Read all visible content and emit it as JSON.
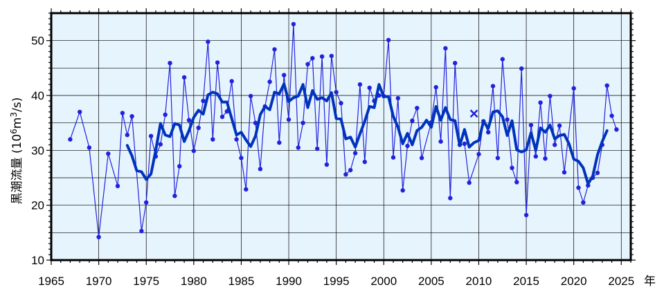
{
  "chart_data": {
    "type": "line",
    "title": "",
    "ylabel": "黒潮流量 (10⁶m³/s)",
    "ylabel_parts": {
      "main": "黒潮流量 (10",
      "exp1": "6",
      "mid": "m",
      "exp2": "3",
      "tail": "/s)"
    },
    "xlabel": "",
    "x_unit": "年",
    "xlim": [
      1965,
      2026
    ],
    "ylim": [
      10,
      55
    ],
    "x_ticks": [
      1965,
      1970,
      1975,
      1980,
      1985,
      1990,
      1995,
      2000,
      2005,
      2010,
      2015,
      2020,
      2025
    ],
    "y_ticks": [
      10,
      20,
      30,
      40,
      50
    ],
    "grid": true,
    "colors": {
      "background": "#e6f4fd",
      "raw_series": "#2222dd",
      "smoothed_series": "#0033bb",
      "grid": "#000000"
    },
    "series": [
      {
        "style": "thin-line-with-points",
        "points": [
          [
            1967.0,
            32.0
          ],
          [
            1968.0,
            37.0
          ],
          [
            1969.0,
            30.5
          ],
          [
            1970.0,
            14.2
          ],
          [
            1971.0,
            29.4
          ],
          [
            1972.0,
            23.5
          ],
          [
            1972.5,
            36.8
          ],
          [
            1973.0,
            32.8
          ],
          [
            1973.5,
            36.2
          ],
          [
            1974.5,
            15.3
          ],
          [
            1975.0,
            20.5
          ],
          [
            1975.5,
            32.6
          ],
          [
            1976.0,
            28.9
          ],
          [
            1976.5,
            31.1
          ],
          [
            1977.0,
            36.5
          ],
          [
            1977.5,
            45.9
          ],
          [
            1978.0,
            21.7
          ],
          [
            1978.5,
            27.1
          ],
          [
            1979.0,
            43.3
          ],
          [
            1979.5,
            35.5
          ],
          [
            1980.0,
            29.9
          ],
          [
            1980.5,
            34.1
          ],
          [
            1981.0,
            39.0
          ],
          [
            1981.5,
            49.8
          ],
          [
            1982.0,
            32.0
          ],
          [
            1982.5,
            46.0
          ],
          [
            1983.0,
            36.1
          ],
          [
            1983.5,
            37.1
          ],
          [
            1984.0,
            42.6
          ],
          [
            1984.5,
            32.0
          ],
          [
            1985.0,
            28.6
          ],
          [
            1985.5,
            22.9
          ],
          [
            1986.0,
            39.9
          ],
          [
            1986.5,
            35.0
          ],
          [
            1987.0,
            26.6
          ],
          [
            1987.5,
            38.0
          ],
          [
            1988.0,
            42.5
          ],
          [
            1988.5,
            48.4
          ],
          [
            1989.0,
            31.4
          ],
          [
            1989.5,
            43.7
          ],
          [
            1990.0,
            35.6
          ],
          [
            1990.5,
            53.0
          ],
          [
            1991.0,
            30.5
          ],
          [
            1991.5,
            35.0
          ],
          [
            1992.0,
            45.7
          ],
          [
            1992.5,
            46.8
          ],
          [
            1993.0,
            30.3
          ],
          [
            1993.5,
            47.1
          ],
          [
            1994.0,
            27.4
          ],
          [
            1994.5,
            47.2
          ],
          [
            1995.0,
            40.6
          ],
          [
            1995.5,
            38.6
          ],
          [
            1996.0,
            25.6
          ],
          [
            1996.5,
            26.4
          ],
          [
            1997.0,
            29.5
          ],
          [
            1997.5,
            42.0
          ],
          [
            1998.0,
            27.9
          ],
          [
            1998.5,
            41.4
          ],
          [
            1999.0,
            39.0
          ],
          [
            1999.5,
            40.0
          ],
          [
            2000.0,
            39.9
          ],
          [
            2000.5,
            50.1
          ],
          [
            2001.0,
            28.7
          ],
          [
            2001.5,
            39.5
          ],
          [
            2002.0,
            22.7
          ],
          [
            2002.5,
            30.8
          ],
          [
            2003.0,
            35.4
          ],
          [
            2003.5,
            37.7
          ],
          [
            2004.0,
            28.6
          ],
          [
            2005.0,
            35.1
          ],
          [
            2005.5,
            41.5
          ],
          [
            2006.0,
            31.6
          ],
          [
            2006.5,
            48.6
          ],
          [
            2007.0,
            21.3
          ],
          [
            2007.5,
            45.9
          ],
          [
            2008.0,
            31.0
          ],
          [
            2008.5,
            31.2
          ],
          [
            2009.0,
            24.1
          ],
          [
            2010.0,
            29.3
          ],
          [
            2010.5,
            35.3
          ],
          [
            2011.0,
            33.3
          ],
          [
            2011.5,
            41.7
          ],
          [
            2012.0,
            28.6
          ],
          [
            2012.5,
            46.6
          ],
          [
            2013.0,
            35.6
          ],
          [
            2013.5,
            26.8
          ],
          [
            2014.0,
            24.2
          ],
          [
            2014.5,
            44.9
          ],
          [
            2015.0,
            18.2
          ],
          [
            2015.5,
            34.6
          ],
          [
            2016.0,
            28.9
          ],
          [
            2016.5,
            38.7
          ],
          [
            2017.0,
            28.5
          ],
          [
            2017.5,
            39.9
          ],
          [
            2018.0,
            31.0
          ],
          [
            2018.5,
            34.5
          ],
          [
            2019.0,
            26.0
          ],
          [
            2020.0,
            41.3
          ],
          [
            2020.5,
            23.2
          ],
          [
            2021.0,
            20.5
          ],
          [
            2021.5,
            23.6
          ],
          [
            2022.0,
            25.0
          ],
          [
            2022.5,
            25.9
          ],
          [
            2023.0,
            31.0
          ],
          [
            2023.5,
            41.8
          ],
          [
            2024.0,
            36.3
          ],
          [
            2024.5,
            33.8
          ]
        ]
      },
      {
        "style": "thick-line",
        "points": [
          [
            1973.0,
            30.9
          ],
          [
            1973.5,
            29.0
          ],
          [
            1974.0,
            26.3
          ],
          [
            1974.5,
            26.1
          ],
          [
            1975.0,
            24.7
          ],
          [
            1975.5,
            25.7
          ],
          [
            1976.0,
            30.0
          ],
          [
            1976.5,
            34.9
          ],
          [
            1977.0,
            32.8
          ],
          [
            1977.5,
            32.5
          ],
          [
            1978.0,
            34.9
          ],
          [
            1978.5,
            34.6
          ],
          [
            1979.0,
            31.6
          ],
          [
            1979.5,
            33.6
          ],
          [
            1980.0,
            36.0
          ],
          [
            1980.5,
            37.3
          ],
          [
            1981.0,
            36.6
          ],
          [
            1981.5,
            40.1
          ],
          [
            1982.0,
            40.6
          ],
          [
            1982.5,
            40.3
          ],
          [
            1983.0,
            38.8
          ],
          [
            1983.5,
            38.8
          ],
          [
            1984.0,
            35.8
          ],
          [
            1984.5,
            32.8
          ],
          [
            1985.0,
            33.3
          ],
          [
            1985.5,
            31.9
          ],
          [
            1986.0,
            30.7
          ],
          [
            1986.5,
            32.6
          ],
          [
            1987.0,
            36.5
          ],
          [
            1987.5,
            38.0
          ],
          [
            1988.0,
            37.4
          ],
          [
            1988.5,
            40.6
          ],
          [
            1989.0,
            40.3
          ],
          [
            1989.5,
            42.1
          ],
          [
            1990.0,
            38.9
          ],
          [
            1990.5,
            39.6
          ],
          [
            1991.0,
            39.9
          ],
          [
            1991.5,
            42.0
          ],
          [
            1992.0,
            37.8
          ],
          [
            1992.5,
            40.9
          ],
          [
            1993.0,
            39.3
          ],
          [
            1993.5,
            39.6
          ],
          [
            1994.0,
            39.0
          ],
          [
            1994.5,
            40.5
          ],
          [
            1995.0,
            35.8
          ],
          [
            1995.5,
            35.7
          ],
          [
            1996.0,
            32.1
          ],
          [
            1996.5,
            32.4
          ],
          [
            1997.0,
            30.6
          ],
          [
            1997.5,
            33.0
          ],
          [
            1998.0,
            35.3
          ],
          [
            1998.5,
            38.0
          ],
          [
            1999.0,
            37.8
          ],
          [
            1999.5,
            42.0
          ],
          [
            2000.0,
            39.8
          ],
          [
            2000.5,
            39.8
          ],
          [
            2001.0,
            36.2
          ],
          [
            2001.5,
            34.2
          ],
          [
            2002.0,
            31.2
          ],
          [
            2002.5,
            33.1
          ],
          [
            2003.0,
            31.0
          ],
          [
            2003.5,
            33.6
          ],
          [
            2004.0,
            34.2
          ],
          [
            2004.5,
            35.5
          ],
          [
            2005.0,
            34.2
          ],
          [
            2005.5,
            38.0
          ],
          [
            2006.0,
            35.5
          ],
          [
            2006.5,
            37.8
          ],
          [
            2007.0,
            35.6
          ],
          [
            2007.5,
            35.4
          ],
          [
            2008.0,
            30.9
          ],
          [
            2008.5,
            33.8
          ],
          [
            2009.0,
            30.6
          ],
          [
            2009.5,
            31.4
          ],
          [
            2010.0,
            31.8
          ],
          [
            2010.5,
            35.3
          ],
          [
            2011.0,
            34.0
          ],
          [
            2011.5,
            37.0
          ],
          [
            2012.0,
            37.2
          ],
          [
            2012.5,
            36.1
          ],
          [
            2013.0,
            32.7
          ],
          [
            2013.5,
            35.4
          ],
          [
            2014.0,
            30.1
          ],
          [
            2014.5,
            29.7
          ],
          [
            2015.0,
            30.1
          ],
          [
            2015.5,
            33.2
          ],
          [
            2016.0,
            30.0
          ],
          [
            2016.5,
            34.1
          ],
          [
            2017.0,
            33.3
          ],
          [
            2017.5,
            34.6
          ],
          [
            2018.0,
            32.1
          ],
          [
            2018.5,
            32.7
          ],
          [
            2019.0,
            32.9
          ],
          [
            2019.5,
            31.2
          ],
          [
            2020.0,
            28.4
          ],
          [
            2020.5,
            28.0
          ],
          [
            2021.0,
            26.8
          ],
          [
            2021.5,
            23.9
          ],
          [
            2022.0,
            25.3
          ],
          [
            2022.5,
            29.2
          ],
          [
            2023.0,
            31.6
          ],
          [
            2023.5,
            33.6
          ]
        ]
      }
    ],
    "special_marker": {
      "x": 2009.5,
      "y": 36.7,
      "symbol": "x"
    }
  }
}
